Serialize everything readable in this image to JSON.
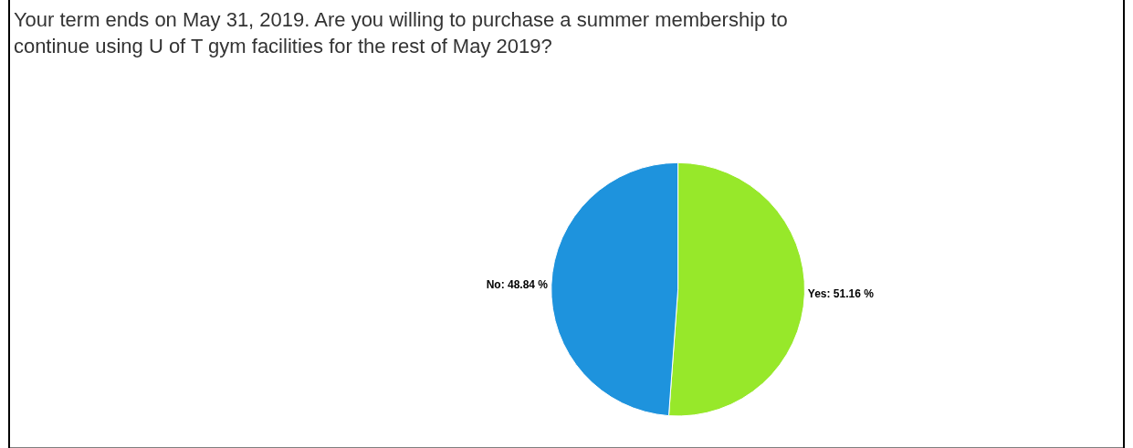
{
  "chart_data": {
    "type": "pie",
    "title": "Your term ends on May 31, 2019. Are you willing to purchase a summer membership to continue using U of T gym facilities for the rest of May 2019?",
    "categories": [
      "Yes",
      "No"
    ],
    "values": [
      51.16,
      48.84
    ],
    "value_labels": [
      "51.16 %",
      "48.84 %"
    ],
    "colors": [
      "#97e82a",
      "#1e93dd"
    ],
    "legend": false
  }
}
